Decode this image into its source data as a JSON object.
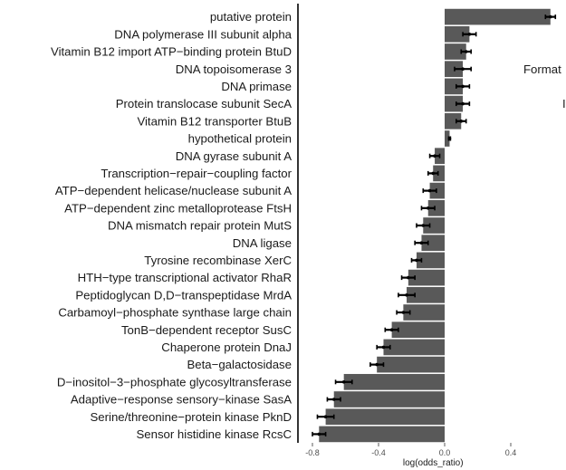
{
  "chart_data": {
    "type": "bar",
    "orientation": "horizontal",
    "xlabel": "log(odds_ratio)",
    "ylabel": "",
    "xlim": [
      -0.88,
      0.75
    ],
    "xticks": [
      -0.8,
      -0.4,
      0.0,
      0.4
    ],
    "xtick_labels": [
      "-0.8",
      "-0.4",
      "0.0",
      "0.4"
    ],
    "grid": false,
    "bar_color": "#595959",
    "error_color": "#000000",
    "categories": [
      "putative protein",
      "DNA polymerase III subunit alpha",
      "Vitamin B12 import ATP−binding protein BtuD",
      "DNA topoisomerase 3",
      "DNA primase",
      "Protein translocase subunit SecA",
      "Vitamin B12 transporter BtuB",
      "hypothetical protein",
      "DNA gyrase subunit A",
      "Transcription−repair−coupling factor",
      "ATP−dependent helicase/nuclease subunit A",
      "ATP−dependent zinc metalloprotease FtsH",
      "DNA mismatch repair protein MutS",
      "DNA ligase",
      "Tyrosine recombinase XerC",
      "HTH−type transcriptional activator RhaR",
      "Peptidoglycan D,D−transpeptidase MrdA",
      "Carbamoyl−phosphate synthase large chain",
      "TonB−dependent receptor SusC",
      "Chaperone protein DnaJ",
      "Beta−galactosidase",
      "D−inositol−3−phosphate glycosyltransferase",
      "Adaptive−response sensory−kinase SasA",
      "Serine/threonine−protein kinase PknD",
      "Sensor histidine kinase RcsC"
    ],
    "values": [
      0.64,
      0.15,
      0.13,
      0.11,
      0.11,
      0.11,
      0.1,
      0.03,
      -0.06,
      -0.07,
      -0.09,
      -0.1,
      -0.13,
      -0.14,
      -0.17,
      -0.22,
      -0.23,
      -0.25,
      -0.32,
      -0.37,
      -0.41,
      -0.61,
      -0.67,
      -0.72,
      -0.76
    ],
    "errors": [
      0.03,
      0.04,
      0.03,
      0.05,
      0.04,
      0.04,
      0.03,
      0.005,
      0.03,
      0.03,
      0.04,
      0.04,
      0.04,
      0.04,
      0.03,
      0.04,
      0.05,
      0.04,
      0.04,
      0.04,
      0.04,
      0.05,
      0.04,
      0.05,
      0.04
    ]
  },
  "side_text": {
    "line1": "Format",
    "line2": "I"
  }
}
